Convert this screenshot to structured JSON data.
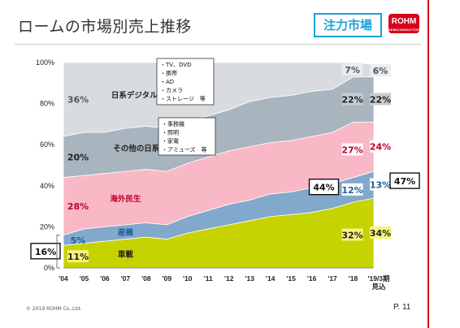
{
  "page": {
    "title": "ロームの市場別売上推移",
    "badge": "注力市場",
    "logo": "ROHM",
    "logo_sub": "SEMICONDUCTOR",
    "copyright": "© 2019 ROHM Co.,Ltd.",
    "page_number": "P. 11",
    "colors": {
      "accent_red": "#d9001b",
      "badge_blue": "#1aa3d8"
    }
  },
  "chart_data": {
    "type": "area",
    "stacked": true,
    "x": [
      "'04",
      "'05",
      "'06",
      "'07",
      "'08",
      "'09",
      "'10",
      "'11",
      "'12",
      "'13",
      "'14",
      "'15",
      "'16",
      "'17",
      "'18",
      "'19/3期"
    ],
    "x_tick_labels": [
      "'04",
      "'05",
      "'06",
      "'07",
      "'08",
      "'09",
      "'10",
      "'11",
      "'12",
      "'13",
      "'14",
      "'15",
      "'16",
      "'17",
      "'18",
      "'19/3期"
    ],
    "x_last_sublabel": "見込",
    "ylim": [
      0,
      100
    ],
    "y_ticks": [
      "0%",
      "20%",
      "40%",
      "60%",
      "80%",
      "100%"
    ],
    "series": [
      {
        "name": "車載",
        "color": "#c7d300",
        "label_color": "#222222",
        "values": [
          11,
          12,
          13,
          14,
          15,
          14,
          17,
          19,
          21,
          23,
          25,
          26,
          27,
          29,
          32,
          34
        ]
      },
      {
        "name": "産機",
        "color": "#82a8cb",
        "label_color": "#1f5fa0",
        "values": [
          5,
          7,
          7,
          7,
          7,
          7,
          8,
          9,
          10,
          10,
          11,
          11,
          12,
          12,
          12,
          13
        ]
      },
      {
        "name": "海外民生",
        "color": "#f8b8c6",
        "label_color": "#c0002a",
        "values": [
          28,
          26,
          26,
          26,
          26,
          26,
          26,
          26,
          26,
          26,
          25,
          25,
          25,
          25,
          27,
          24
        ]
      },
      {
        "name": "その他の日系民生",
        "color": "#a8b4be",
        "label_color": "#222222",
        "values": [
          20,
          21,
          20,
          21,
          21,
          21,
          21,
          20,
          20,
          22,
          22,
          22,
          22,
          21,
          22,
          22
        ]
      },
      {
        "name": "日系デジタル家電",
        "color": "#d8dce0",
        "label_color": "#222222",
        "values": [
          36,
          34,
          34,
          32,
          31,
          32,
          28,
          26,
          23,
          19,
          17,
          16,
          14,
          13,
          7,
          6
        ]
      }
    ],
    "series_labels": [
      {
        "series": "車載",
        "text": "車載"
      },
      {
        "series": "産機",
        "text": "産機"
      },
      {
        "series": "海外民生",
        "text": "海外民生"
      },
      {
        "series": "その他の日系民生",
        "text": "その他の日系民生"
      },
      {
        "series": "日系デジタル家電",
        "text": "日系デジタル家電"
      }
    ],
    "value_labels": [
      {
        "text": "36%",
        "series": "日系デジタル家電",
        "x": "'04",
        "boxed": false
      },
      {
        "text": "20%",
        "series": "その他の日系民生",
        "x": "'04",
        "boxed": false
      },
      {
        "text": "28%",
        "series": "海外民生",
        "x": "'04",
        "boxed": false
      },
      {
        "text": "5%",
        "series": "産機",
        "x": "'04",
        "boxed": false
      },
      {
        "text": "11%",
        "series": "車載",
        "x": "'04",
        "boxed": false
      },
      {
        "text": "7%",
        "series": "日系デジタル家電",
        "x": "'18",
        "boxed": false
      },
      {
        "text": "6%",
        "series": "日系デジタル家電",
        "x": "'19/3期",
        "boxed": false
      },
      {
        "text": "22%",
        "series": "その他の日系民生",
        "x": "'18",
        "boxed": false
      },
      {
        "text": "22%",
        "series": "その他の日系民生",
        "x": "'19/3期",
        "boxed": false
      },
      {
        "text": "27%",
        "series": "海外民生",
        "x": "'18",
        "boxed": false
      },
      {
        "text": "24%",
        "series": "海外民生",
        "x": "'19/3期",
        "boxed": false
      },
      {
        "text": "12%",
        "series": "産機",
        "x": "'18",
        "boxed": false
      },
      {
        "text": "13%",
        "series": "産機",
        "x": "'19/3期",
        "boxed": false
      },
      {
        "text": "32%",
        "series": "車載",
        "x": "'18",
        "boxed": false
      },
      {
        "text": "34%",
        "series": "車載",
        "x": "'19/3期",
        "boxed": false
      }
    ],
    "focus_totals": [
      {
        "text": "16%",
        "x": "'04"
      },
      {
        "text": "44%",
        "x": "'18"
      },
      {
        "text": "47%",
        "x": "'19/3期"
      }
    ],
    "notes": [
      {
        "series": "日系デジタル家電",
        "items": [
          "・TV、DVD",
          "・携帯",
          "・AD",
          "・カメラ",
          "・ストレージ　等"
        ]
      },
      {
        "series": "その他の日系民生",
        "items": [
          "・事務機",
          "・照明",
          "・家電",
          "・アミューズ　等"
        ]
      }
    ]
  }
}
